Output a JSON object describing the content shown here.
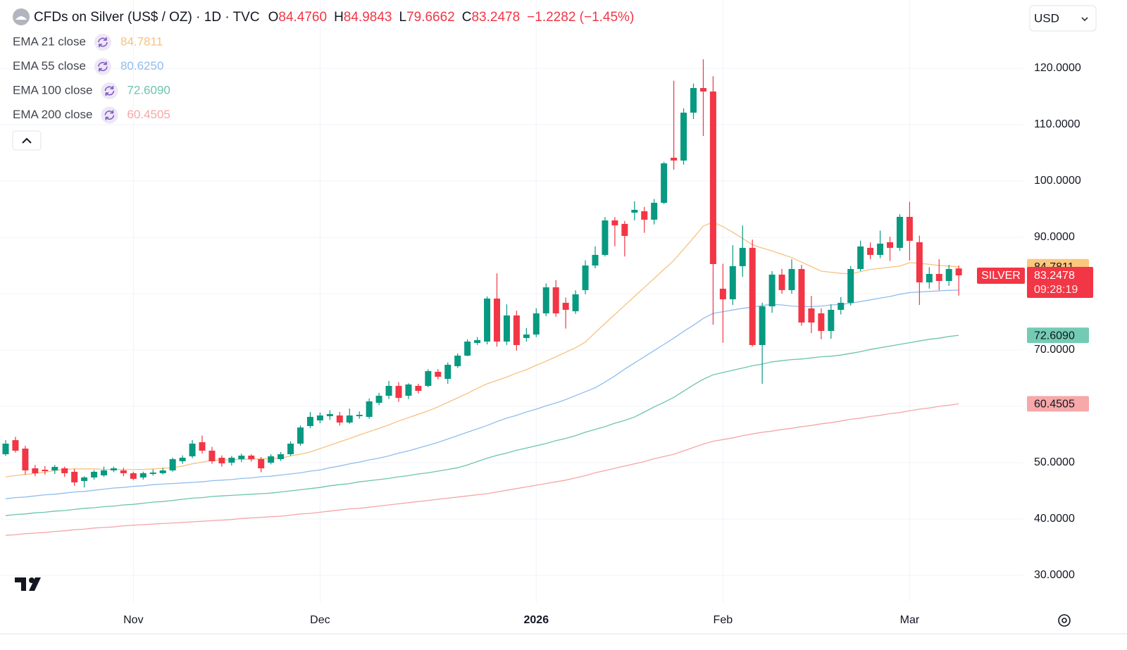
{
  "currency": "USD",
  "chart_data": {
    "type": "candlestick",
    "header": {
      "title": "CFDs on Silver (US$ / OZ) · 1D · TVC",
      "ohlc": [
        {
          "key": "O",
          "value": "84.4760"
        },
        {
          "key": "H",
          "value": "84.9843"
        },
        {
          "key": "L",
          "value": "79.6662"
        },
        {
          "key": "C",
          "value": "83.2478"
        }
      ],
      "change": "−1.2282 (−1.45%)"
    },
    "symbol": "SILVER",
    "countdown": "09:28:19",
    "up_color": "#089981",
    "down_color": "#f23645",
    "grid": true,
    "ylim": [
      25.25,
      132.125
    ],
    "yticks": [
      {
        "value": 30,
        "label": "30.0000"
      },
      {
        "value": 40,
        "label": "40.0000"
      },
      {
        "value": 50,
        "label": "50.0000"
      },
      {
        "value": 60,
        "label": "60.0000"
      },
      {
        "value": 70,
        "label": "70.0000"
      },
      {
        "value": 80,
        "label": "80.0000"
      },
      {
        "value": 90,
        "label": "90.0000"
      },
      {
        "value": 100,
        "label": "100.0000"
      },
      {
        "value": 110,
        "label": "110.0000"
      },
      {
        "value": 120,
        "label": "120.0000"
      }
    ],
    "categories": [
      null,
      null,
      null,
      null,
      null,
      null,
      null,
      null,
      null,
      null,
      null,
      null,
      null,
      "Nov",
      null,
      null,
      null,
      null,
      null,
      null,
      null,
      null,
      null,
      null,
      null,
      null,
      null,
      null,
      null,
      null,
      null,
      null,
      "Dec",
      null,
      null,
      null,
      null,
      null,
      null,
      null,
      null,
      null,
      null,
      null,
      null,
      null,
      null,
      null,
      null,
      null,
      null,
      null,
      null,
      null,
      "2026",
      null,
      null,
      null,
      null,
      null,
      null,
      null,
      null,
      null,
      null,
      null,
      null,
      null,
      null,
      null,
      null,
      null,
      null,
      "Feb",
      null,
      null,
      null,
      null,
      null,
      null,
      null,
      null,
      null,
      null,
      null,
      null,
      null,
      null,
      null,
      null,
      null,
      null,
      "Mar",
      null,
      null,
      null,
      null,
      null
    ],
    "open": [
      51.5,
      54.0,
      52.5,
      49.0,
      48.75,
      48.63,
      49.0,
      48.38,
      46.75,
      47.38,
      47.75,
      48.63,
      48.63,
      48.13,
      47.38,
      48.0,
      48.13,
      48.63,
      50.25,
      51.13,
      53.63,
      52.13,
      50.88,
      50.0,
      50.63,
      51.25,
      50.63,
      50.0,
      50.63,
      51.5,
      53.38,
      56.5,
      57.5,
      58.25,
      58.38,
      57.13,
      58.25,
      58.13,
      60.63,
      61.88,
      63.63,
      61.88,
      63.63,
      63.63,
      66.13,
      64.88,
      67.13,
      69.0,
      71.25,
      71.5,
      79.13,
      71.5,
      76.13,
      72.13,
      72.75,
      76.5,
      81.13,
      78.38,
      76.88,
      80.63,
      85.0,
      86.88,
      93.0,
      92.38,
      94.38,
      94.63,
      93.13,
      96.13,
      104.13,
      103.63,
      112.13,
      116.5,
      115.88,
      80.88,
      79.0,
      84.88,
      88.13,
      70.88,
      77.75,
      83.38,
      80.63,
      84.38,
      77.38,
      76.5,
      73.38,
      77.13,
      78.38,
      84.38,
      88.13,
      86.88,
      89.13,
      88.13,
      93.63,
      89.13,
      82.0,
      83.5,
      82.25,
      84.476
    ],
    "high": [
      54.0,
      54.6,
      53.0,
      49.6,
      49.4,
      49.6,
      49.3,
      48.9,
      47.6,
      48.7,
      49.3,
      49.3,
      49.1,
      48.4,
      48.4,
      48.8,
      49.1,
      50.9,
      51.3,
      54.0,
      54.8,
      52.8,
      51.3,
      51.2,
      51.6,
      51.5,
      51.0,
      51.5,
      51.9,
      53.8,
      56.6,
      59.0,
      58.9,
      59.3,
      59.0,
      59.6,
      59.1,
      61.4,
      62.4,
      64.5,
      64.3,
      64.1,
      64.0,
      66.6,
      66.6,
      67.8,
      69.4,
      71.9,
      72.3,
      79.5,
      83.6,
      78.1,
      77.0,
      73.9,
      77.4,
      81.8,
      82.4,
      79.3,
      80.6,
      85.9,
      88.4,
      93.6,
      93.6,
      92.9,
      96.4,
      95.4,
      96.8,
      103.4,
      117.8,
      112.9,
      117.3,
      121.6,
      118.6,
      85.3,
      88.6,
      92.1,
      89.6,
      78.4,
      84.0,
      84.4,
      86.1,
      85.1,
      79.6,
      77.4,
      78.1,
      79.4,
      84.9,
      89.4,
      89.1,
      91.2,
      90.1,
      94.1,
      96.3,
      90.3,
      84.7,
      86.1,
      85.1,
      84.9843
    ],
    "low": [
      51.2,
      51.8,
      47.9,
      47.6,
      47.9,
      48.0,
      47.5,
      45.9,
      45.6,
      47.0,
      47.5,
      48.3,
      47.6,
      46.9,
      47.0,
      47.7,
      47.9,
      48.4,
      49.8,
      50.8,
      51.6,
      49.8,
      49.3,
      49.5,
      50.1,
      50.2,
      48.3,
      49.7,
      50.3,
      51.2,
      53.0,
      56.1,
      57.0,
      57.6,
      56.6,
      56.9,
      57.8,
      57.8,
      60.2,
      61.3,
      60.8,
      61.3,
      62.3,
      63.4,
      64.8,
      64.0,
      66.8,
      68.9,
      70.9,
      71.0,
      70.6,
      70.9,
      69.9,
      71.5,
      72.3,
      76.0,
      75.9,
      73.8,
      76.4,
      79.9,
      84.5,
      86.6,
      88.4,
      86.6,
      93.0,
      90.8,
      92.3,
      95.9,
      102.0,
      102.9,
      111.0,
      108.0,
      74.5,
      71.3,
      78.0,
      83.0,
      70.6,
      64.0,
      76.6,
      80.0,
      80.0,
      74.3,
      73.0,
      71.9,
      72.0,
      76.3,
      77.9,
      84.0,
      86.1,
      86.3,
      85.8,
      87.6,
      85.9,
      78.0,
      80.9,
      80.6,
      81.4,
      79.6662
    ],
    "close": [
      53.38,
      52.13,
      48.63,
      48.13,
      48.5,
      49.25,
      48.13,
      46.5,
      47.38,
      48.38,
      48.63,
      49.0,
      48.13,
      47.13,
      48.13,
      48.25,
      48.63,
      50.63,
      50.88,
      53.38,
      52.13,
      50.25,
      49.88,
      50.88,
      51.25,
      50.63,
      49.0,
      51.13,
      51.5,
      53.38,
      56.25,
      58.13,
      58.38,
      58.63,
      57.13,
      58.38,
      58.5,
      60.88,
      61.88,
      63.63,
      61.5,
      63.88,
      62.75,
      66.25,
      65.25,
      67.38,
      69.0,
      71.5,
      71.75,
      79.13,
      71.5,
      76.13,
      70.88,
      72.75,
      76.5,
      81.13,
      76.5,
      77.13,
      79.88,
      85.0,
      86.88,
      93.0,
      92.13,
      90.25,
      94.88,
      93.13,
      96.13,
      103.13,
      103.63,
      112.13,
      116.5,
      115.88,
      85.25,
      79.0,
      84.88,
      88.13,
      70.88,
      77.75,
      83.38,
      80.63,
      84.38,
      74.88,
      74.88,
      73.38,
      77.13,
      78.38,
      84.38,
      88.38,
      86.88,
      88.88,
      88.13,
      93.63,
      89.38,
      82.0,
      83.5,
      82.25,
      84.38,
      83.2478
    ],
    "indicators": [
      {
        "name": "EMA 21 close",
        "color": "#f7c27f",
        "badge_color": "#fbc77e",
        "last_label": "84.7811",
        "values": [
          47.5,
          47.7,
          47.9,
          48.1,
          48.3,
          48.6,
          48.8,
          48.9,
          48.9,
          48.9,
          48.8,
          48.8,
          48.8,
          48.8,
          48.8,
          48.9,
          49.0,
          49.1,
          49.4,
          49.8,
          50.1,
          50.4,
          50.5,
          50.5,
          50.6,
          50.6,
          50.7,
          50.7,
          50.8,
          51.2,
          51.5,
          51.9,
          52.5,
          53.1,
          53.7,
          54.3,
          54.9,
          55.5,
          56.1,
          56.7,
          57.4,
          58.0,
          58.6,
          59.2,
          59.9,
          60.7,
          61.5,
          62.3,
          63.2,
          64.0,
          64.6,
          65.2,
          65.9,
          66.5,
          67.3,
          68.0,
          68.8,
          69.6,
          70.4,
          71.4,
          73.1,
          74.7,
          76.3,
          77.9,
          79.5,
          81.1,
          82.7,
          84.3,
          85.9,
          87.9,
          89.9,
          92.0,
          92.7,
          91.9,
          90.9,
          89.8,
          88.7,
          88.1,
          87.6,
          87.0,
          86.4,
          85.6,
          84.8,
          84.0,
          83.8,
          83.6,
          83.5,
          83.9,
          84.3,
          84.5,
          84.7,
          84.9,
          85.5,
          85.4,
          85.2,
          85.0,
          84.9,
          84.7811
        ]
      },
      {
        "name": "EMA 55 close",
        "color": "#90bdee",
        "badge_color": "#90bff0",
        "last_label": "80.6250",
        "values": [
          43.6,
          43.8,
          43.9,
          44.1,
          44.3,
          44.4,
          44.6,
          44.8,
          44.9,
          45.1,
          45.3,
          45.5,
          45.6,
          45.8,
          45.9,
          46.1,
          46.2,
          46.3,
          46.4,
          46.5,
          46.6,
          46.8,
          46.9,
          47.0,
          47.2,
          47.3,
          47.5,
          47.6,
          47.8,
          48.0,
          48.2,
          48.5,
          48.7,
          49.1,
          49.4,
          49.8,
          50.1,
          50.5,
          50.8,
          51.2,
          51.7,
          52.1,
          52.6,
          53.1,
          53.6,
          54.2,
          54.8,
          55.4,
          56.0,
          56.6,
          57.3,
          57.9,
          58.4,
          59.0,
          59.5,
          60.1,
          60.6,
          61.2,
          61.9,
          62.6,
          63.3,
          64.3,
          65.4,
          66.6,
          67.7,
          68.8,
          69.9,
          71.0,
          72.1,
          73.3,
          74.4,
          75.6,
          76.5,
          76.8,
          77.1,
          77.4,
          77.6,
          77.9,
          78.1,
          78.0,
          77.8,
          77.7,
          77.7,
          77.8,
          78.0,
          78.1,
          78.3,
          78.6,
          78.9,
          79.2,
          79.5,
          79.9,
          80.2,
          80.3,
          80.4,
          80.5,
          80.6,
          80.625
        ]
      },
      {
        "name": "EMA 100 close",
        "color": "#6cc4ad",
        "badge_color": "#74cbb4",
        "last_label": "72.6090",
        "values": [
          40.6,
          40.8,
          40.9,
          41.1,
          41.2,
          41.4,
          41.5,
          41.7,
          41.9,
          42.0,
          42.2,
          42.3,
          42.5,
          42.6,
          42.8,
          43.0,
          43.1,
          43.3,
          43.5,
          43.7,
          43.8,
          44.0,
          44.1,
          44.2,
          44.3,
          44.4,
          44.5,
          44.6,
          44.8,
          45.0,
          45.2,
          45.4,
          45.6,
          45.9,
          46.1,
          46.3,
          46.6,
          46.8,
          47.0,
          47.2,
          47.5,
          47.7,
          48.0,
          48.2,
          48.5,
          48.8,
          49.1,
          49.6,
          50.2,
          50.8,
          51.3,
          51.7,
          52.2,
          52.6,
          53.0,
          53.4,
          53.9,
          54.3,
          54.8,
          55.4,
          55.9,
          56.4,
          57.0,
          57.5,
          58.1,
          59.0,
          59.9,
          60.7,
          61.6,
          62.7,
          63.8,
          64.8,
          65.6,
          66.0,
          66.4,
          66.8,
          67.2,
          67.5,
          67.9,
          68.1,
          68.3,
          68.4,
          68.6,
          68.8,
          68.9,
          69.1,
          69.4,
          69.7,
          70.1,
          70.4,
          70.7,
          71.0,
          71.3,
          71.6,
          71.9,
          72.1,
          72.4,
          72.609
        ]
      },
      {
        "name": "EMA 200 close",
        "color": "#f6a6a6",
        "badge_color": "#f7a8a8",
        "last_label": "60.4505",
        "values": [
          37.1,
          37.2,
          37.4,
          37.5,
          37.6,
          37.8,
          37.9,
          38.1,
          38.2,
          38.4,
          38.5,
          38.6,
          38.8,
          38.9,
          39.0,
          39.1,
          39.2,
          39.3,
          39.4,
          39.5,
          39.6,
          39.7,
          39.8,
          39.9,
          40.1,
          40.2,
          40.3,
          40.4,
          40.5,
          40.7,
          40.9,
          41.0,
          41.2,
          41.4,
          41.6,
          41.8,
          41.9,
          42.1,
          42.3,
          42.5,
          42.7,
          42.9,
          43.1,
          43.3,
          43.5,
          43.7,
          43.9,
          44.1,
          44.3,
          44.5,
          44.8,
          45.1,
          45.4,
          45.7,
          46.0,
          46.3,
          46.6,
          46.9,
          47.3,
          47.7,
          48.2,
          48.6,
          49.0,
          49.4,
          49.8,
          50.2,
          50.7,
          51.1,
          51.5,
          52.1,
          52.7,
          53.3,
          53.8,
          54.1,
          54.4,
          54.8,
          55.1,
          55.4,
          55.6,
          55.9,
          56.1,
          56.4,
          56.6,
          56.9,
          57.1,
          57.4,
          57.7,
          57.9,
          58.2,
          58.4,
          58.7,
          58.9,
          59.2,
          59.5,
          59.7,
          60.0,
          60.2,
          60.4505
        ]
      }
    ]
  }
}
